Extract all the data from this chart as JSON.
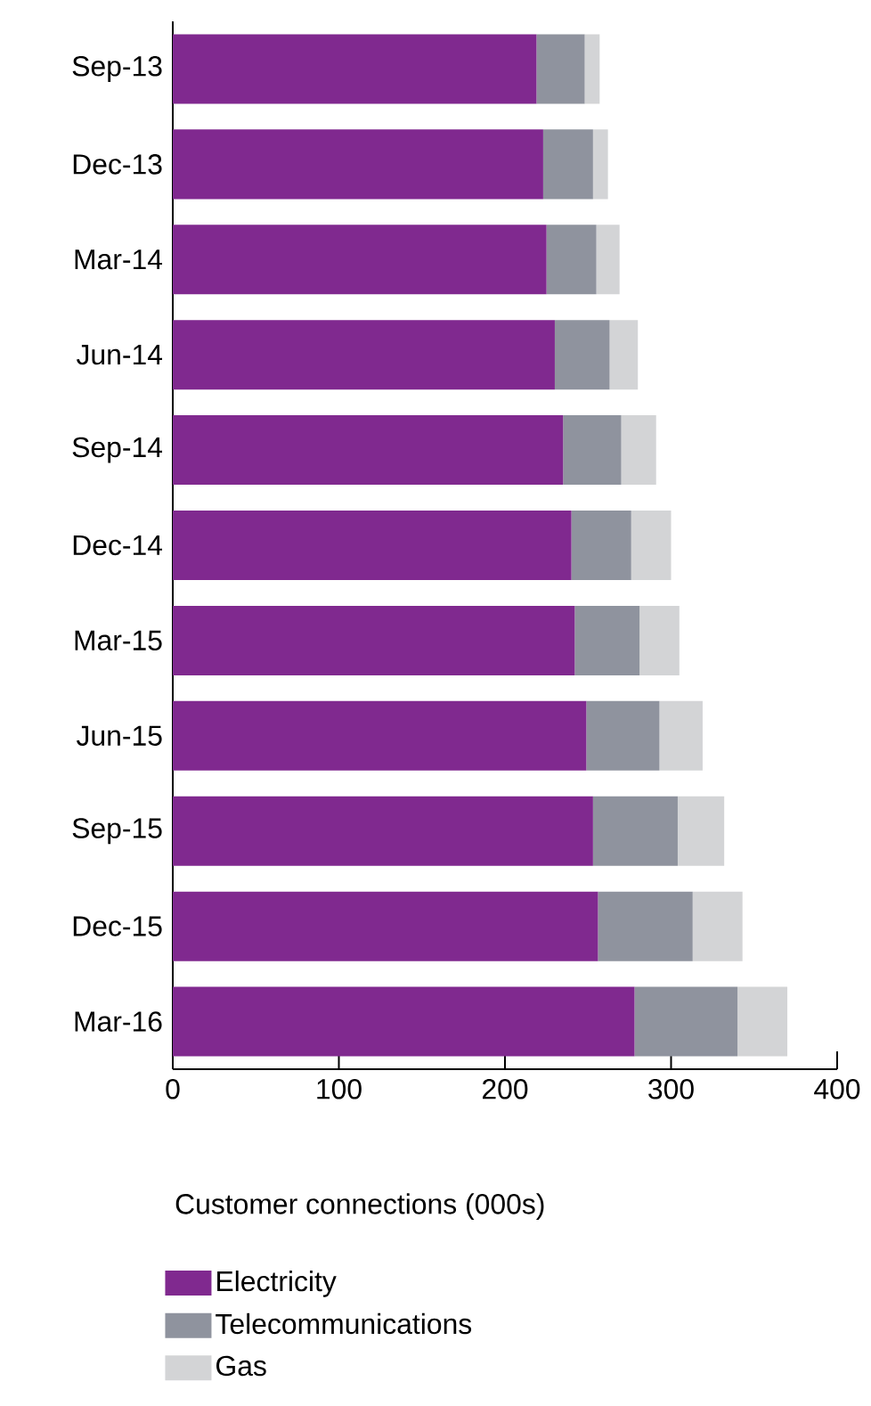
{
  "chart_data": {
    "type": "bar",
    "orientation": "horizontal",
    "stacked": true,
    "xlabel": "Customer connections (000s)",
    "categories": [
      "Sep-13",
      "Dec-13",
      "Mar-14",
      "Jun-14",
      "Sep-14",
      "Dec-14",
      "Mar-15",
      "Jun-15",
      "Sep-15",
      "Dec-15",
      "Mar-16"
    ],
    "series": [
      {
        "name": "Electricity",
        "color": "#80298f",
        "values": [
          219,
          223,
          225,
          230,
          235,
          240,
          242,
          249,
          253,
          256,
          278
        ]
      },
      {
        "name": "Telecommunications",
        "color": "#8f939e",
        "values": [
          29,
          30,
          30,
          33,
          35,
          36,
          39,
          44,
          51,
          57,
          62
        ]
      },
      {
        "name": "Gas",
        "color": "#d3d4d6",
        "values": [
          9,
          9,
          14,
          17,
          21,
          24,
          24,
          26,
          28,
          30,
          30
        ]
      }
    ],
    "xlim": [
      0,
      400
    ],
    "xticks": [
      0,
      100,
      200,
      300,
      400
    ],
    "legend": "bottom left"
  }
}
